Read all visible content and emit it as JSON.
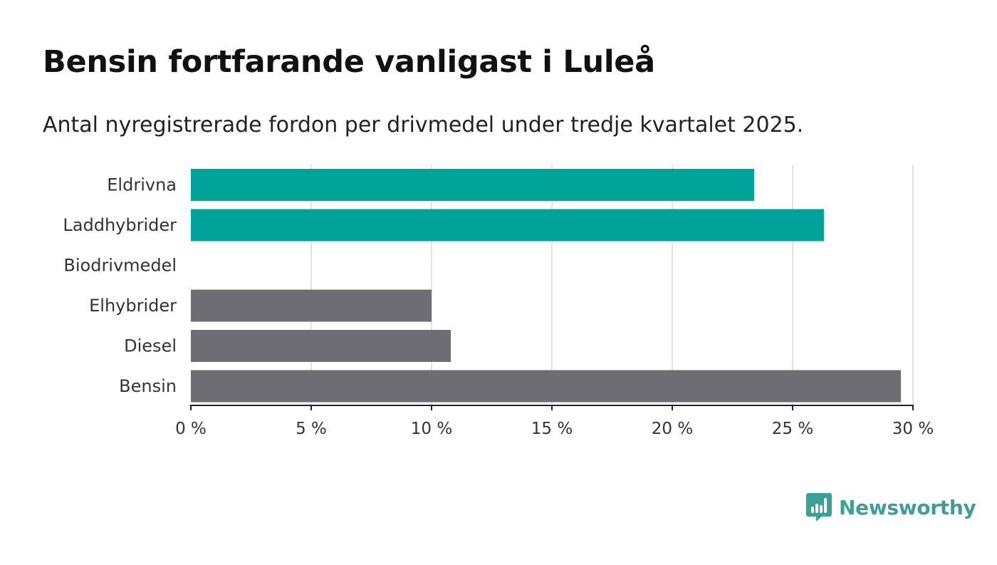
{
  "title": "Bensin fortfarande vanligast i Luleå",
  "subtitle": "Antal nyregistrerade fordon per drivmedel under tredje kvartalet 2025.",
  "brand": {
    "name": "Newsworthy",
    "color": "#3f9e95",
    "icon": "bar-chart-icon"
  },
  "colors": {
    "highlight": "#00a39a",
    "default": "#6e6d73",
    "grid": "#dcdcdc",
    "axis": "#222222"
  },
  "chart_data": {
    "type": "bar",
    "orientation": "horizontal",
    "categories": [
      "Eldrivna",
      "Laddhybrider",
      "Biodrivmedel",
      "Elhybrider",
      "Diesel",
      "Bensin"
    ],
    "values": [
      23.4,
      26.3,
      0,
      10.0,
      10.8,
      29.5
    ],
    "highlighted": [
      true,
      true,
      true,
      false,
      false,
      false
    ],
    "xlim": [
      0,
      30
    ],
    "xticks": [
      0,
      5,
      10,
      15,
      20,
      25,
      30
    ],
    "tick_labels": [
      "0 %",
      "5 %",
      "10 %",
      "15 %",
      "20 %",
      "25 %",
      "30 %"
    ],
    "xlabel": "",
    "ylabel": "",
    "grid": true
  }
}
